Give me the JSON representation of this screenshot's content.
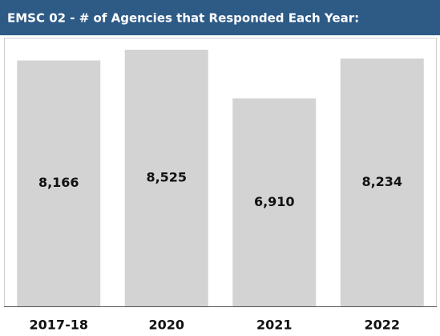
{
  "chart_data": {
    "type": "bar",
    "title": "EMSC 02 - # of Agencies that Responded Each Year:",
    "categories": [
      "2017-18",
      "2020",
      "2021",
      "2022"
    ],
    "values": [
      8166,
      8525,
      6910,
      8234
    ],
    "value_labels": [
      "8,166",
      "8,525",
      "6,910",
      "8,234"
    ],
    "color": "#d3d3d3"
  }
}
